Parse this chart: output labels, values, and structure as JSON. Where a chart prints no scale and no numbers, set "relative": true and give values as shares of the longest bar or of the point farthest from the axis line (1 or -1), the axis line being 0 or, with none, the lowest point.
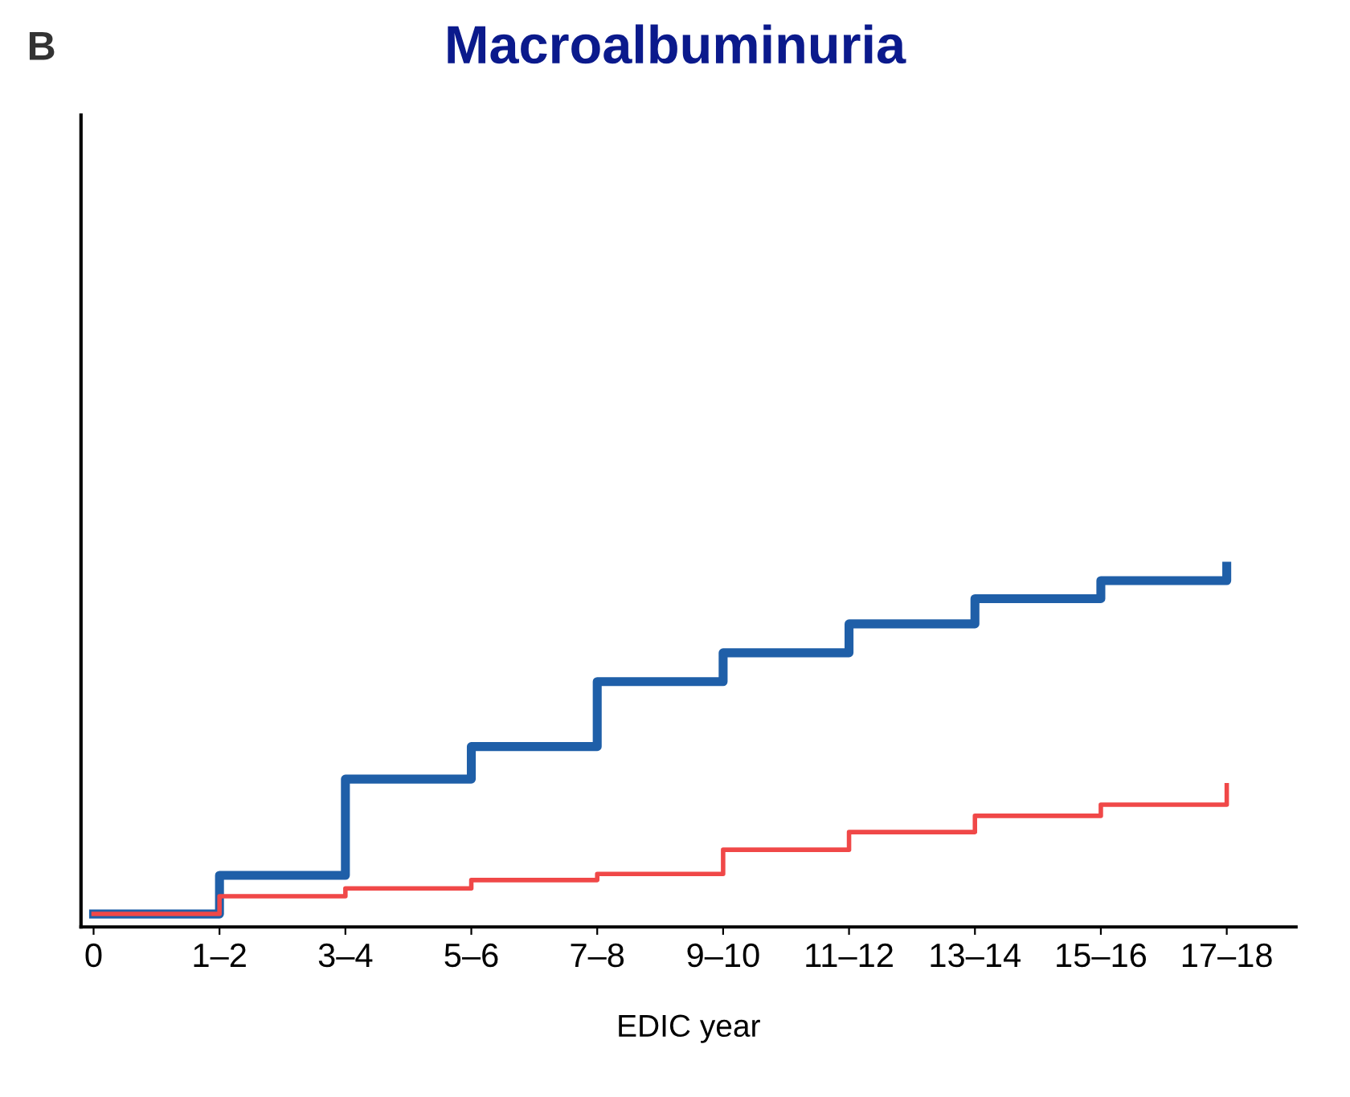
{
  "chart_data": {
    "type": "step",
    "title": "Macroalbuminuria",
    "xlabel": "EDIC year",
    "annotations": [
      "B"
    ],
    "relative": true,
    "categories": [
      "0",
      "1–2",
      "3–4",
      "5–6",
      "7–8",
      "9–10",
      "11–12",
      "13–14",
      "15–16",
      "17–18"
    ],
    "series": [
      {
        "color": "#1f5fa8",
        "values": [
          0.036,
          0.143,
          0.41,
          0.5,
          0.68,
          0.76,
          0.84,
          0.91,
          0.96,
          1
        ]
      },
      {
        "color": "#f04848",
        "values": [
          0.036,
          0.085,
          0.107,
          0.13,
          0.147,
          0.214,
          0.263,
          0.308,
          0.339,
          0.393
        ]
      }
    ],
    "grid": false,
    "legend": false
  }
}
